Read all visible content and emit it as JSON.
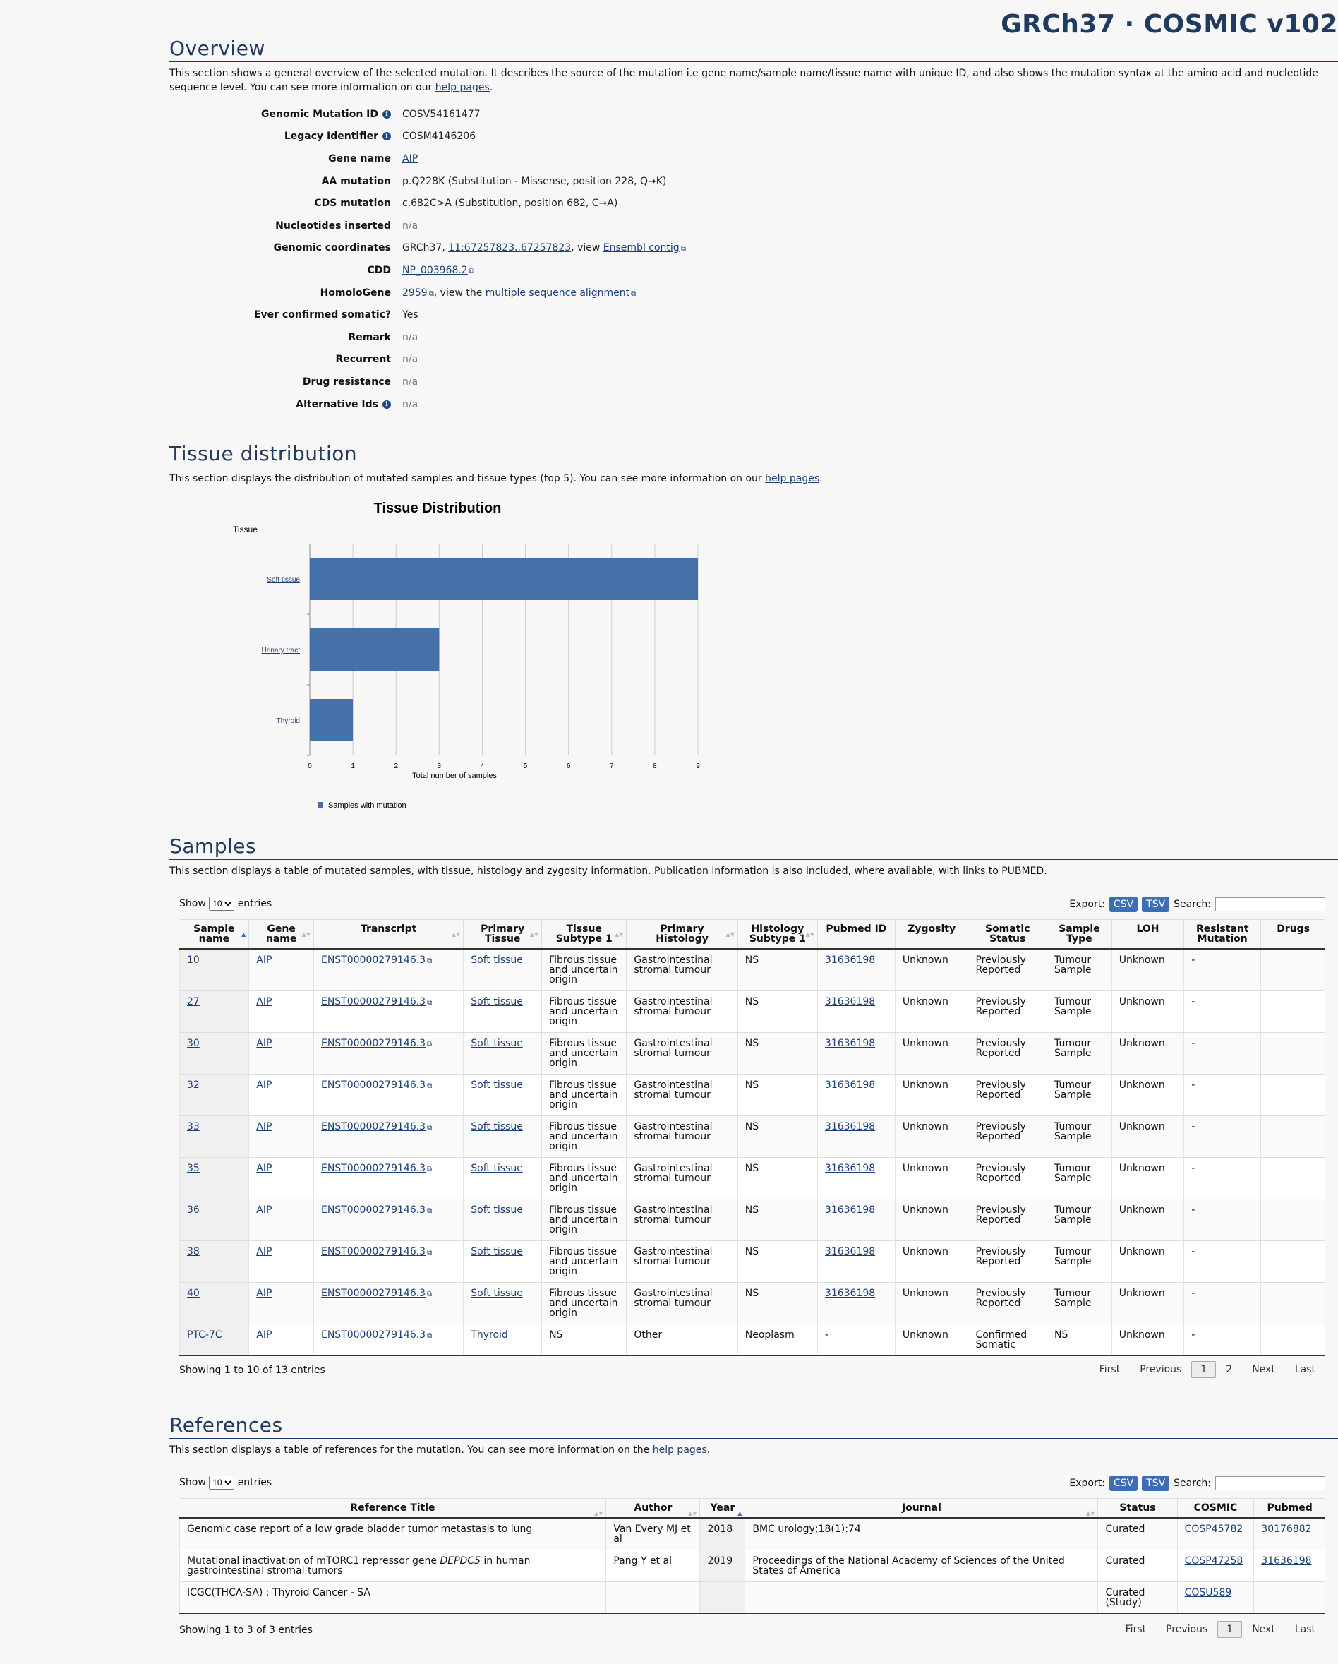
{
  "brand": "GRCh37 · COSMIC v102",
  "overview": {
    "title": "Overview",
    "desc_prefix": "This section shows a general overview of the selected mutation. It describes the source of the mutation i.e gene name/sample name/tissue name with unique ID, and also shows the mutation syntax at the amino acid and nucleotide sequence level. You can see more information on our ",
    "desc_link": "help pages",
    "rows": [
      {
        "label": "Genomic Mutation ID",
        "value": "COSV54161477",
        "info": true
      },
      {
        "label": "Legacy Identifier",
        "value": "COSM4146206",
        "info": true
      },
      {
        "label": "Gene name",
        "value": "AIP"
      },
      {
        "label": "AA mutation",
        "value": "p.Q228K (Substitution - Missense, position 228, Q➞K)"
      },
      {
        "label": "CDS mutation",
        "value": "c.682C>A (Substitution, position 682, C➞A)"
      },
      {
        "label": "Nucleotides inserted",
        "value": "n/a"
      },
      {
        "label": "Genomic coordinates",
        "value": "GRCh37, ",
        "link1": "11:67257823..67257823",
        "mid": ", view ",
        "link2": "Ensembl contig"
      },
      {
        "label": "CDD",
        "value": "NP_003968.2"
      },
      {
        "label": "HomoloGene",
        "value": "2959",
        "mid": ", view the ",
        "link2": "multiple sequence alignment"
      },
      {
        "label": "Ever confirmed somatic?",
        "value": "Yes"
      },
      {
        "label": "Remark",
        "value": "n/a"
      },
      {
        "label": "Recurrent",
        "value": "n/a"
      },
      {
        "label": "Drug resistance",
        "value": "n/a"
      },
      {
        "label": "Alternative Ids",
        "value": "n/a",
        "info": true
      }
    ]
  },
  "tissue": {
    "title": "Tissue distribution",
    "desc_prefix": "This section displays the distribution of mutated samples and tissue types (top 5). You can see more information on our ",
    "desc_link": "help pages"
  },
  "chart_data": {
    "type": "bar",
    "orientation": "horizontal",
    "title": "Tissue Distribution",
    "ylabel": "Tissue",
    "xlabel": "Total number of samples",
    "categories": [
      "Soft tissue",
      "Urinary tract",
      "Thyroid"
    ],
    "series": [
      {
        "name": "Samples with mutation",
        "values": [
          9,
          3,
          1
        ]
      }
    ],
    "xlim": [
      0,
      9
    ],
    "xticks": [
      "0",
      "1",
      "2",
      "3",
      "4",
      "5",
      "6",
      "7",
      "8",
      "9"
    ],
    "grid": true,
    "legend": "bottom-left",
    "color": "#4671a8"
  },
  "samples": {
    "title": "Samples",
    "desc": "This section displays a table of mutated samples, with tissue, histology and zygosity information. Publication information is also included, where available, with links to PUBMED.",
    "show_label": "Show",
    "entries_label": "entries",
    "page_size": "10",
    "export_label": "Export:",
    "csv": "CSV",
    "tsv": "TSV",
    "search_label": "Search:",
    "headers": [
      "Sample name",
      "Gene name",
      "Transcript",
      "Primary Tissue",
      "Tissue Subtype 1",
      "Primary Histology",
      "Histology Subtype 1",
      "Pubmed ID",
      "Zygosity",
      "Somatic Status",
      "Sample Type",
      "LOH",
      "Resistant Mutation",
      "Drugs"
    ],
    "rows": [
      [
        "10",
        "AIP",
        "ENST00000279146.3",
        "Soft tissue",
        "Fibrous tissue and uncertain origin",
        "Gastrointestinal stromal tumour",
        "NS",
        "31636198",
        "Unknown",
        "Previously Reported",
        "Tumour Sample",
        "Unknown",
        "-",
        ""
      ],
      [
        "27",
        "AIP",
        "ENST00000279146.3",
        "Soft tissue",
        "Fibrous tissue and uncertain origin",
        "Gastrointestinal stromal tumour",
        "NS",
        "31636198",
        "Unknown",
        "Previously Reported",
        "Tumour Sample",
        "Unknown",
        "-",
        ""
      ],
      [
        "30",
        "AIP",
        "ENST00000279146.3",
        "Soft tissue",
        "Fibrous tissue and uncertain origin",
        "Gastrointestinal stromal tumour",
        "NS",
        "31636198",
        "Unknown",
        "Previously Reported",
        "Tumour Sample",
        "Unknown",
        "-",
        ""
      ],
      [
        "32",
        "AIP",
        "ENST00000279146.3",
        "Soft tissue",
        "Fibrous tissue and uncertain origin",
        "Gastrointestinal stromal tumour",
        "NS",
        "31636198",
        "Unknown",
        "Previously Reported",
        "Tumour Sample",
        "Unknown",
        "-",
        ""
      ],
      [
        "33",
        "AIP",
        "ENST00000279146.3",
        "Soft tissue",
        "Fibrous tissue and uncertain origin",
        "Gastrointestinal stromal tumour",
        "NS",
        "31636198",
        "Unknown",
        "Previously Reported",
        "Tumour Sample",
        "Unknown",
        "-",
        ""
      ],
      [
        "35",
        "AIP",
        "ENST00000279146.3",
        "Soft tissue",
        "Fibrous tissue and uncertain origin",
        "Gastrointestinal stromal tumour",
        "NS",
        "31636198",
        "Unknown",
        "Previously Reported",
        "Tumour Sample",
        "Unknown",
        "-",
        ""
      ],
      [
        "36",
        "AIP",
        "ENST00000279146.3",
        "Soft tissue",
        "Fibrous tissue and uncertain origin",
        "Gastrointestinal stromal tumour",
        "NS",
        "31636198",
        "Unknown",
        "Previously Reported",
        "Tumour Sample",
        "Unknown",
        "-",
        ""
      ],
      [
        "38",
        "AIP",
        "ENST00000279146.3",
        "Soft tissue",
        "Fibrous tissue and uncertain origin",
        "Gastrointestinal stromal tumour",
        "NS",
        "31636198",
        "Unknown",
        "Previously Reported",
        "Tumour Sample",
        "Unknown",
        "-",
        ""
      ],
      [
        "40",
        "AIP",
        "ENST00000279146.3",
        "Soft tissue",
        "Fibrous tissue and uncertain origin",
        "Gastrointestinal stromal tumour",
        "NS",
        "31636198",
        "Unknown",
        "Previously Reported",
        "Tumour Sample",
        "Unknown",
        "-",
        ""
      ],
      [
        "PTC-7C",
        "AIP",
        "ENST00000279146.3",
        "Thyroid",
        "NS",
        "Other",
        "Neoplasm",
        "-",
        "Unknown",
        "Confirmed Somatic",
        "NS",
        "Unknown",
        "-",
        ""
      ]
    ],
    "info": "Showing 1 to 10 of 13 entries",
    "pager": [
      "First",
      "Previous",
      "1",
      "2",
      "Next",
      "Last"
    ]
  },
  "references": {
    "title": "References",
    "desc_prefix": "This section displays a table of references for the mutation. You can see more information on the ",
    "desc_link": "help pages",
    "show_label": "Show",
    "entries_label": "entries",
    "page_size": "10",
    "export_label": "Export:",
    "csv": "CSV",
    "tsv": "TSV",
    "search_label": "Search:",
    "headers": [
      "Reference Title",
      "Author",
      "Year",
      "Journal",
      "Status",
      "COSMIC",
      "Pubmed"
    ],
    "rows": [
      [
        "Genomic case report of a low grade bladder tumor metastasis to lung",
        "Van Every MJ et al",
        "2018",
        "BMC urology;18(1):74",
        "Curated",
        "COSP45782",
        "30176882"
      ],
      [
        "Mutational inactivation of mTORC1 repressor gene DEPDC5 in human gastrointestinal stromal tumors",
        "Pang Y et al",
        "2019",
        "Proceedings of the National Academy of Sciences of the United States of America",
        "Curated",
        "COSP47258",
        "31636198"
      ],
      [
        "ICGC(THCA-SA) : Thyroid Cancer - SA",
        "",
        "",
        "",
        "Curated (Study)",
        "COSU589",
        ""
      ]
    ],
    "info": "Showing 1 to 3 of 3 entries",
    "pager": [
      "First",
      "Previous",
      "1",
      "Next",
      "Last"
    ]
  }
}
